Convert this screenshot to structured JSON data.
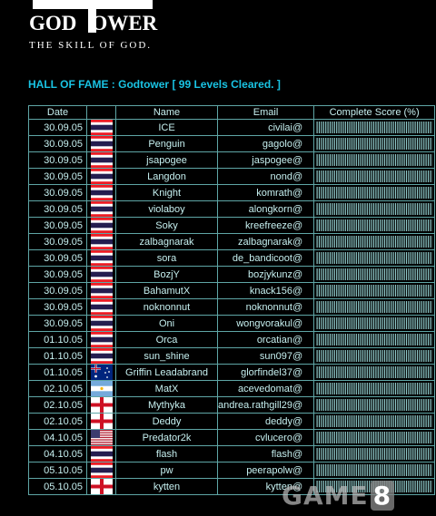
{
  "logo": {
    "title_left": "GOD",
    "title_right": "OWER",
    "subtitle": "THE SKILL OF GOD."
  },
  "heading": "HALL OF FAME : Godtower [ 99 Levels Cleared. ]",
  "columns": [
    "Date",
    "",
    "Name",
    "Email",
    "Complete Score (%)"
  ],
  "rows": [
    {
      "date": "30.09.05",
      "flag": "th",
      "name": "ICE",
      "email": "civilai@",
      "score": 100
    },
    {
      "date": "30.09.05",
      "flag": "th",
      "name": "Penguin",
      "email": "gagolo@",
      "score": 100
    },
    {
      "date": "30.09.05",
      "flag": "th",
      "name": "jsapogee",
      "email": "jaspogee@",
      "score": 100
    },
    {
      "date": "30.09.05",
      "flag": "th",
      "name": "Langdon",
      "email": "nond@",
      "score": 100
    },
    {
      "date": "30.09.05",
      "flag": "th",
      "name": "Knight",
      "email": "komrath@",
      "score": 100
    },
    {
      "date": "30.09.05",
      "flag": "th",
      "name": "violaboy",
      "email": "alongkorn@",
      "score": 100
    },
    {
      "date": "30.09.05",
      "flag": "th",
      "name": "Soky",
      "email": "kreefreeze@",
      "score": 100
    },
    {
      "date": "30.09.05",
      "flag": "th",
      "name": "zalbagnarak",
      "email": "zalbagnarak@",
      "score": 100
    },
    {
      "date": "30.09.05",
      "flag": "th",
      "name": "sora",
      "email": "de_bandicoot@",
      "score": 100
    },
    {
      "date": "30.09.05",
      "flag": "th",
      "name": "BozjY",
      "email": "bozjykunz@",
      "score": 100
    },
    {
      "date": "30.09.05",
      "flag": "th",
      "name": "BahamutX",
      "email": "knack156@",
      "score": 100
    },
    {
      "date": "30.09.05",
      "flag": "th",
      "name": "noknonnut",
      "email": "noknonnut@",
      "score": 100
    },
    {
      "date": "30.09.05",
      "flag": "th",
      "name": "Oni",
      "email": "wongvorakul@",
      "score": 100
    },
    {
      "date": "01.10.05",
      "flag": "th",
      "name": "Orca",
      "email": "orcatian@",
      "score": 100
    },
    {
      "date": "01.10.05",
      "flag": "th",
      "name": "sun_shine",
      "email": "sun097@",
      "score": 100
    },
    {
      "date": "01.10.05",
      "flag": "au",
      "name": "Griffin Leadabrand",
      "email": "glorfindel37@",
      "score": 100
    },
    {
      "date": "02.10.05",
      "flag": "ar",
      "name": "MatX",
      "email": "acevedomat@",
      "score": 100
    },
    {
      "date": "02.10.05",
      "flag": "en",
      "name": "Mythyka",
      "email": "andrea.rathgill29@",
      "score": 100
    },
    {
      "date": "02.10.05",
      "flag": "en",
      "name": "Deddy",
      "email": "deddy@",
      "score": 100
    },
    {
      "date": "04.10.05",
      "flag": "us",
      "name": "Predator2k",
      "email": "cvlucero@",
      "score": 100
    },
    {
      "date": "04.10.05",
      "flag": "th",
      "name": "flash",
      "email": "flash@",
      "score": 100
    },
    {
      "date": "05.10.05",
      "flag": "th",
      "name": "pw",
      "email": "peerapolw@",
      "score": 100
    },
    {
      "date": "05.10.05",
      "flag": "en",
      "name": "kytten",
      "email": "kytten@",
      "score": 100
    }
  ],
  "watermark": {
    "word": "GAME",
    "number": "8"
  },
  "colors": {
    "heading": "#19c3e3",
    "grid": "#5fa6a6",
    "text": "#c6f0f0",
    "score_bar": "#8ec8c8"
  }
}
